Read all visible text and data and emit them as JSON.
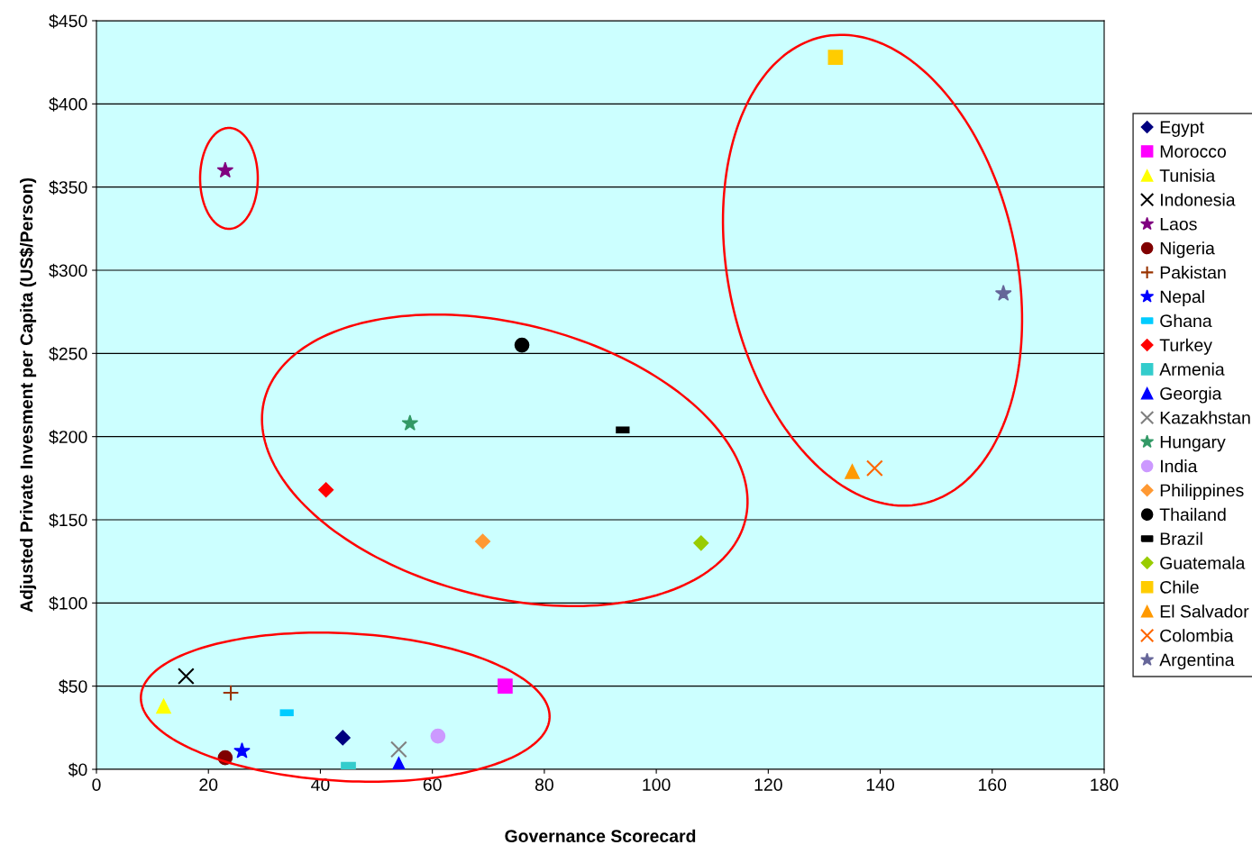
{
  "chart_data": {
    "type": "scatter",
    "xlabel": "Governance Scorecard",
    "ylabel": "Adjusted Private Invesment per Capita (US$/Person)",
    "xlim": [
      0,
      180
    ],
    "xticks": [
      0,
      20,
      40,
      60,
      80,
      100,
      120,
      140,
      160,
      180
    ],
    "ylim": [
      0,
      450
    ],
    "yticks": [
      {
        "value": 0,
        "label": "$0"
      },
      {
        "value": 50,
        "label": "$50"
      },
      {
        "value": 100,
        "label": "$100"
      },
      {
        "value": 150,
        "label": "$150"
      },
      {
        "value": 200,
        "label": "$200"
      },
      {
        "value": 250,
        "label": "$250"
      },
      {
        "value": 300,
        "label": "$300"
      },
      {
        "value": 350,
        "label": "$350"
      },
      {
        "value": 400,
        "label": "$400"
      },
      {
        "value": 450,
        "label": "$450"
      }
    ],
    "grid": "y",
    "legend": "right",
    "series": [
      {
        "name": "Egypt",
        "color": "#000080",
        "marker": "diamond",
        "x": [
          44
        ],
        "values": [
          19
        ]
      },
      {
        "name": "Morocco",
        "color": "#ff00ff",
        "marker": "square",
        "x": [
          73
        ],
        "values": [
          50
        ]
      },
      {
        "name": "Tunisia",
        "color": "#ffff00",
        "marker": "triangle",
        "x": [
          12
        ],
        "values": [
          38
        ]
      },
      {
        "name": "Indonesia",
        "color": "#000000",
        "marker": "cross",
        "x": [
          16
        ],
        "values": [
          56
        ]
      },
      {
        "name": "Laos",
        "color": "#800080",
        "marker": "star",
        "x": [
          23
        ],
        "values": [
          360
        ]
      },
      {
        "name": "Nigeria",
        "color": "#800000",
        "marker": "circle",
        "x": [
          23
        ],
        "values": [
          7
        ]
      },
      {
        "name": "Pakistan",
        "color": "#993300",
        "marker": "plus",
        "x": [
          24
        ],
        "values": [
          46
        ]
      },
      {
        "name": "Nepal",
        "color": "#0000ff",
        "marker": "star",
        "x": [
          26
        ],
        "values": [
          11
        ]
      },
      {
        "name": "Ghana",
        "color": "#00ccff",
        "x": [
          34
        ],
        "values": [
          34
        ]
      },
      {
        "name": "Turkey",
        "color": "#ff0000",
        "marker": "diamond",
        "x": [
          41
        ],
        "values": [
          168
        ]
      },
      {
        "name": "Armenia",
        "color": "#33cccc",
        "marker": "square",
        "x": [
          45
        ],
        "values": [
          0
        ]
      },
      {
        "name": "Georgia",
        "color": "#0000ff",
        "marker": "triangle",
        "x": [
          54
        ],
        "values": [
          3
        ]
      },
      {
        "name": "Kazakhstan",
        "color": "#808080",
        "marker": "cross",
        "x": [
          54
        ],
        "values": [
          12
        ]
      },
      {
        "name": "Hungary",
        "color": "#339966",
        "marker": "star",
        "x": [
          56
        ],
        "values": [
          208
        ]
      },
      {
        "name": "India",
        "color": "#cc99ff",
        "marker": "circle",
        "x": [
          61
        ],
        "values": [
          20
        ]
      },
      {
        "name": "Philippines",
        "color": "#ff9933",
        "marker": "diamond",
        "x": [
          69
        ],
        "values": [
          137
        ]
      },
      {
        "name": "Thailand",
        "color": "#000000",
        "marker": "circle",
        "x": [
          76
        ],
        "values": [
          255
        ]
      },
      {
        "name": "Brazil",
        "color": "#000000",
        "x": [
          94
        ],
        "values": [
          204
        ]
      },
      {
        "name": "Guatemala",
        "color": "#99cc00",
        "marker": "diamond",
        "x": [
          108
        ],
        "values": [
          136
        ]
      },
      {
        "name": "Chile",
        "color": "#ffcc00",
        "marker": "square",
        "x": [
          132
        ],
        "values": [
          428
        ]
      },
      {
        "name": "El Salvador",
        "color": "#ff9900",
        "marker": "triangle",
        "x": [
          135
        ],
        "values": [
          179
        ]
      },
      {
        "name": "Colombia",
        "color": "#ff6600",
        "marker": "cross",
        "x": [
          139
        ],
        "values": [
          181
        ]
      },
      {
        "name": "Argentina",
        "color": "#666699",
        "marker": "star",
        "x": [
          162
        ],
        "values": [
          286
        ]
      }
    ]
  }
}
